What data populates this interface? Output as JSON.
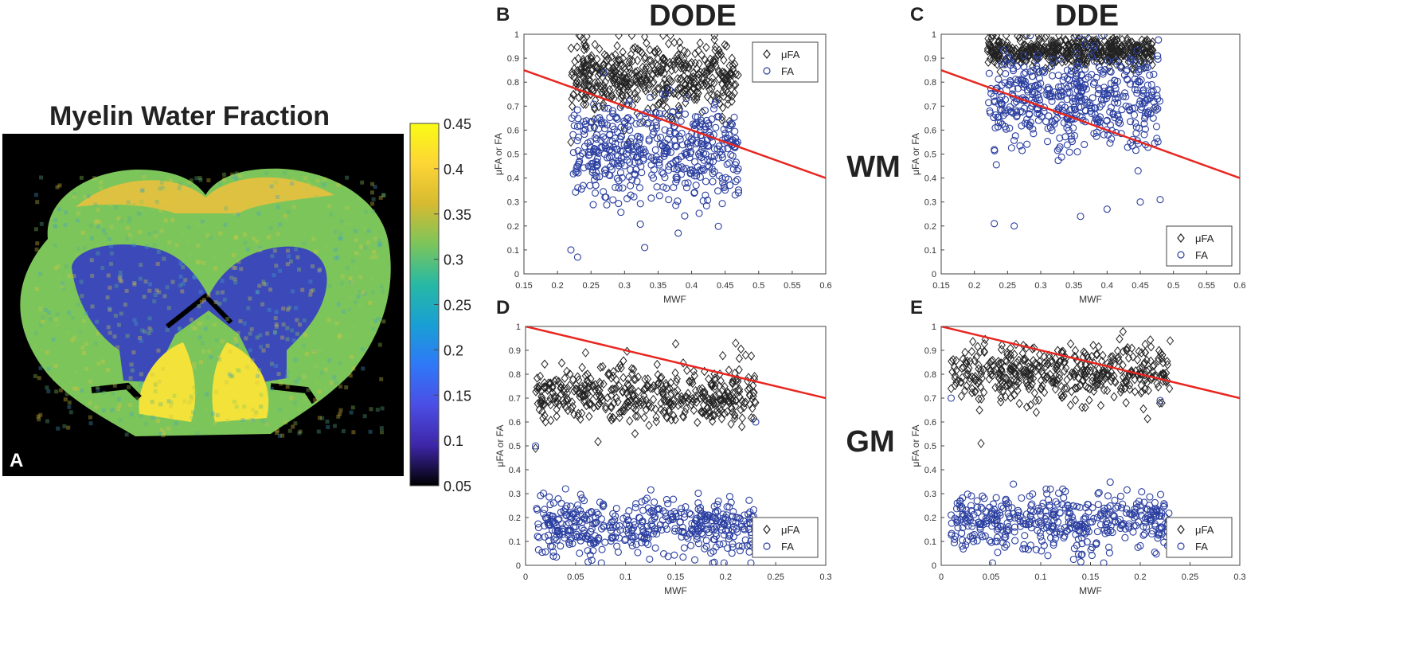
{
  "figure": {
    "col_headers": [
      "DODE",
      "DDE"
    ],
    "row_labels": [
      "WM",
      "GM"
    ]
  },
  "map_panel": {
    "letter": "A",
    "title": "Myelin Water Fraction",
    "colorbar": {
      "ticks": [
        "0.45",
        "0.4",
        "0.35",
        "0.3",
        "0.25",
        "0.2",
        "0.15",
        "0.1",
        "0.05"
      ],
      "min": 0.05,
      "max": 0.45,
      "colors": [
        "#000000",
        "#3e26a8",
        "#4b4ee4",
        "#2f78f8",
        "#199fd4",
        "#27b9a4",
        "#7cc55a",
        "#d6ba31",
        "#fdd535",
        "#f9fb15"
      ]
    }
  },
  "colors": {
    "mufa": "#222222",
    "fa": "#2b3fa0",
    "fit_line": "#e8261f",
    "brain_blue": "#3b4ab8",
    "brain_green": "#7cc55a",
    "brain_yellow": "#f2e23a",
    "brain_orange": "#f0c03c"
  },
  "chart_data": [
    {
      "panel": "B",
      "type": "scatter",
      "group": "WM",
      "sequence": "DODE",
      "xlabel": "MWF",
      "ylabel": "μFA or FA",
      "xlim": [
        0.15,
        0.6
      ],
      "ylim": [
        0,
        1
      ],
      "xticks": [
        "0.15",
        "0.2",
        "0.25",
        "0.3",
        "0.35",
        "0.4",
        "0.45",
        "0.5",
        "0.55",
        "0.6"
      ],
      "yticks": [
        "0",
        "0.1",
        "0.2",
        "0.3",
        "0.4",
        "0.5",
        "0.6",
        "0.7",
        "0.8",
        "0.9",
        "1"
      ],
      "legend": {
        "position": "top-right",
        "entries": [
          "μFA",
          "FA"
        ]
      },
      "fit_line": [
        [
          0.15,
          0.85
        ],
        [
          0.6,
          0.4
        ]
      ],
      "series": [
        {
          "name": "μFA",
          "marker": "diamond",
          "cluster": {
            "x_range": [
              0.22,
              0.47
            ],
            "y_center": 0.82,
            "y_spread": 0.07,
            "n": 500
          },
          "notable_points": [
            [
              0.33,
              0.99
            ],
            [
              0.22,
              0.55
            ],
            [
              0.3,
              0.6
            ],
            [
              0.46,
              0.72
            ]
          ]
        },
        {
          "name": "FA",
          "marker": "circle",
          "cluster": {
            "x_range": [
              0.22,
              0.47
            ],
            "y_center": 0.52,
            "y_spread": 0.1,
            "n": 500
          },
          "notable_points": [
            [
              0.23,
              0.07
            ],
            [
              0.33,
              0.11
            ],
            [
              0.22,
              0.1
            ],
            [
              0.47,
              0.35
            ],
            [
              0.45,
              0.35
            ],
            [
              0.38,
              0.17
            ]
          ]
        }
      ]
    },
    {
      "panel": "C",
      "type": "scatter",
      "group": "WM",
      "sequence": "DDE",
      "xlabel": "MWF",
      "ylabel": "μFA or FA",
      "xlim": [
        0.15,
        0.6
      ],
      "ylim": [
        0,
        1
      ],
      "xticks": [
        "0.15",
        "0.2",
        "0.25",
        "0.3",
        "0.35",
        "0.4",
        "0.45",
        "0.5",
        "0.55",
        "0.6"
      ],
      "yticks": [
        "0",
        "0.1",
        "0.2",
        "0.3",
        "0.4",
        "0.5",
        "0.6",
        "0.7",
        "0.8",
        "0.9",
        "1"
      ],
      "legend": {
        "position": "bottom-right",
        "entries": [
          "μFA",
          "FA"
        ]
      },
      "fit_line": [
        [
          0.15,
          0.85
        ],
        [
          0.6,
          0.4
        ]
      ],
      "series": [
        {
          "name": "μFA",
          "marker": "diamond",
          "cluster": {
            "x_range": [
              0.22,
              0.47
            ],
            "y_center": 0.93,
            "y_spread": 0.03,
            "n": 500
          },
          "notable_points": [
            [
              0.47,
              0.69
            ],
            [
              0.35,
              0.99
            ]
          ]
        },
        {
          "name": "FA",
          "marker": "circle",
          "cluster": {
            "x_range": [
              0.22,
              0.48
            ],
            "y_center": 0.72,
            "y_spread": 0.1,
            "n": 500
          },
          "notable_points": [
            [
              0.23,
              0.21
            ],
            [
              0.26,
              0.2
            ],
            [
              0.45,
              0.3
            ],
            [
              0.48,
              0.31
            ],
            [
              0.36,
              0.24
            ],
            [
              0.4,
              0.27
            ]
          ]
        }
      ]
    },
    {
      "panel": "D",
      "type": "scatter",
      "group": "GM",
      "sequence": "DODE",
      "xlabel": "MWF",
      "ylabel": "μFA or FA",
      "xlim": [
        0,
        0.3
      ],
      "ylim": [
        0,
        1
      ],
      "xticks": [
        "0",
        "0.05",
        "0.1",
        "0.15",
        "0.2",
        "0.25",
        "0.3"
      ],
      "yticks": [
        "0",
        "0.1",
        "0.2",
        "0.3",
        "0.4",
        "0.5",
        "0.6",
        "0.7",
        "0.8",
        "0.9",
        "1"
      ],
      "legend": {
        "position": "bottom-right",
        "entries": [
          "μFA",
          "FA"
        ]
      },
      "fit_line": [
        [
          0,
          1.0
        ],
        [
          0.3,
          0.7
        ]
      ],
      "series": [
        {
          "name": "μFA",
          "marker": "diamond",
          "cluster": {
            "x_range": [
              0.01,
              0.23
            ],
            "y_center": 0.71,
            "y_spread": 0.06,
            "n": 450
          },
          "notable_points": [
            [
              0.21,
              0.93
            ],
            [
              0.01,
              0.49
            ],
            [
              0.02,
              0.6
            ],
            [
              0.06,
              0.89
            ],
            [
              0.22,
              0.88
            ]
          ]
        },
        {
          "name": "FA",
          "marker": "circle",
          "cluster": {
            "x_range": [
              0.01,
              0.23
            ],
            "y_center": 0.16,
            "y_spread": 0.06,
            "n": 450
          },
          "notable_points": [
            [
              0.02,
              0.2
            ],
            [
              0.23,
              0.6
            ],
            [
              0.2,
              0.2
            ],
            [
              0.01,
              0.5
            ],
            [
              0.04,
              0.32
            ]
          ]
        }
      ]
    },
    {
      "panel": "E",
      "type": "scatter",
      "group": "GM",
      "sequence": "DDE",
      "xlabel": "MWF",
      "ylabel": "μFA or FA",
      "xlim": [
        0,
        0.3
      ],
      "ylim": [
        0,
        1
      ],
      "xticks": [
        "0",
        "0.05",
        "0.1",
        "0.15",
        "0.2",
        "0.25",
        "0.3"
      ],
      "yticks": [
        "0",
        "0.1",
        "0.2",
        "0.3",
        "0.4",
        "0.5",
        "0.6",
        "0.7",
        "0.8",
        "0.9",
        "1"
      ],
      "legend": {
        "position": "bottom-right",
        "entries": [
          "μFA",
          "FA"
        ]
      },
      "fit_line": [
        [
          0,
          1.0
        ],
        [
          0.3,
          0.7
        ]
      ],
      "series": [
        {
          "name": "μFA",
          "marker": "diamond",
          "cluster": {
            "x_range": [
              0.01,
              0.23
            ],
            "y_center": 0.8,
            "y_spread": 0.06,
            "n": 450
          },
          "notable_points": [
            [
              0.01,
              0.74
            ],
            [
              0.23,
              0.94
            ],
            [
              0.04,
              0.51
            ],
            [
              0.2,
              0.8
            ]
          ]
        },
        {
          "name": "FA",
          "marker": "circle",
          "cluster": {
            "x_range": [
              0.01,
              0.23
            ],
            "y_center": 0.18,
            "y_spread": 0.06,
            "n": 450
          },
          "notable_points": [
            [
              0.02,
              0.19
            ],
            [
              0.21,
              0.2
            ],
            [
              0.22,
              0.69
            ],
            [
              0.01,
              0.7
            ],
            [
              0.03,
              0.25
            ]
          ]
        }
      ]
    }
  ]
}
